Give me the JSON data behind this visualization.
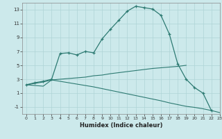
{
  "xlabel": "Humidex (Indice chaleur)",
  "bg_color": "#cce9eb",
  "line_color": "#2d7a72",
  "grid_color": "#aed4d6",
  "xlim": [
    -0.5,
    23
  ],
  "ylim": [
    -2,
    14
  ],
  "xticks": [
    0,
    1,
    2,
    3,
    4,
    5,
    6,
    7,
    8,
    9,
    10,
    11,
    12,
    13,
    14,
    15,
    16,
    17,
    18,
    19,
    20,
    21,
    22,
    23
  ],
  "yticks": [
    -1,
    1,
    3,
    5,
    7,
    9,
    11,
    13
  ],
  "curve1_x": [
    0,
    1,
    2,
    3,
    4,
    5,
    6,
    7,
    8,
    9,
    10,
    11,
    12,
    13,
    14,
    15,
    16,
    17,
    18,
    19,
    20,
    21,
    22
  ],
  "curve1_y": [
    2.2,
    2.5,
    2.7,
    3.0,
    6.7,
    6.8,
    6.5,
    7.0,
    6.8,
    8.8,
    10.2,
    11.5,
    12.8,
    13.5,
    13.3,
    13.1,
    12.2,
    9.5,
    5.2,
    3.0,
    1.8,
    1.0,
    -1.5
  ],
  "curve2_x": [
    0,
    1,
    2,
    3,
    4,
    5,
    6,
    7,
    8,
    9,
    10,
    11,
    12,
    13,
    14,
    15,
    16,
    17,
    18,
    19
  ],
  "curve2_y": [
    2.2,
    2.4,
    2.6,
    2.9,
    3.0,
    3.1,
    3.2,
    3.3,
    3.5,
    3.6,
    3.8,
    3.95,
    4.1,
    4.25,
    4.4,
    4.55,
    4.65,
    4.75,
    4.85,
    5.0
  ],
  "curve3_x": [
    0,
    1,
    2,
    3,
    4,
    5,
    6,
    7,
    8,
    9,
    10,
    11,
    12,
    13,
    14,
    15,
    16,
    17,
    18,
    19,
    20,
    21,
    22,
    23
  ],
  "curve3_y": [
    2.2,
    2.1,
    2.0,
    2.9,
    2.7,
    2.5,
    2.3,
    2.1,
    1.9,
    1.65,
    1.4,
    1.15,
    0.9,
    0.65,
    0.4,
    0.15,
    -0.1,
    -0.4,
    -0.65,
    -0.9,
    -1.05,
    -1.25,
    -1.5,
    -1.8
  ]
}
